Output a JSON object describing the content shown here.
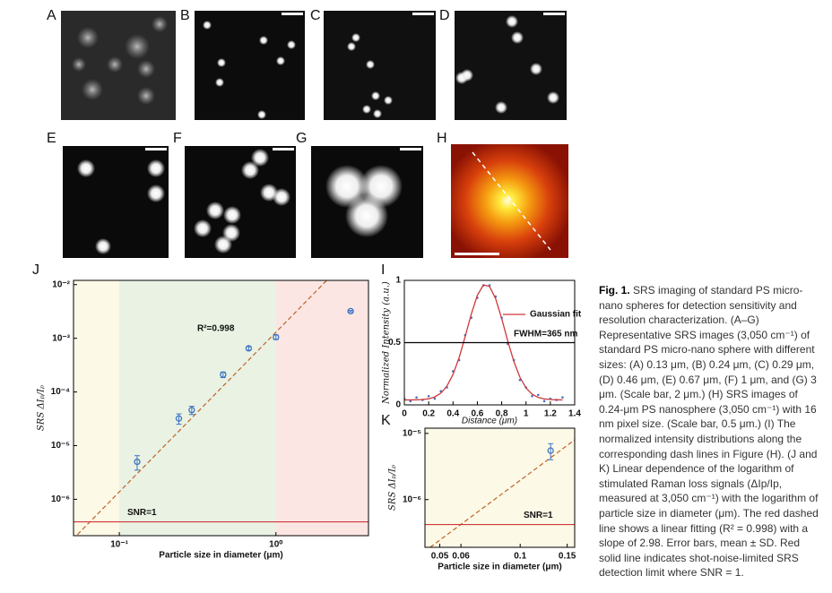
{
  "panel_labels": [
    "A",
    "B",
    "C",
    "D",
    "E",
    "F",
    "G",
    "H"
  ],
  "chart_data": [
    {
      "type": "scatter",
      "panel_label": "J",
      "xlabel": "Particle size in diameter (μm)",
      "ylabel": "SRS ΔIₚ/Iₚ",
      "xscale": "log",
      "yscale": "log",
      "xlim": [
        0.051,
        3.9
      ],
      "ylim": [
        2.1e-07,
        0.012
      ],
      "xticks": [
        {
          "value": 0.1,
          "label": "10⁻¹"
        },
        {
          "value": 1,
          "label": "10⁰"
        }
      ],
      "yticks": [
        {
          "value": 1e-06,
          "label": "10⁻⁶"
        },
        {
          "value": 1e-05,
          "label": "10⁻⁵"
        },
        {
          "value": 0.0001,
          "label": "10⁻⁴"
        },
        {
          "value": 0.001,
          "label": "10⁻³"
        },
        {
          "value": 0.01,
          "label": "10⁻²"
        }
      ],
      "regions": [
        {
          "from": 0.051,
          "to": 0.1,
          "color": "#fcf9e6"
        },
        {
          "from": 0.1,
          "to": 1,
          "color": "#e9f2e3"
        },
        {
          "from": 1,
          "to": 3.9,
          "color": "#fbe6e3"
        }
      ],
      "x": [
        0.13,
        0.24,
        0.29,
        0.46,
        0.67,
        1,
        3
      ],
      "values": [
        5e-06,
        3.2e-05,
        4.6e-05,
        0.00021,
        0.00065,
        0.00105,
        0.0032
      ],
      "errors": [
        1.5e-06,
        7e-06,
        8e-06,
        2.5e-05,
        5e-05,
        0.0001,
        0.0001
      ],
      "color": "#3e74c4",
      "fit": {
        "x": [
          0.054,
          2.1
        ],
        "values": [
          2.2e-07,
          0.0118
        ],
        "color": "#c0622a"
      },
      "threshold": {
        "value": 3.8e-07,
        "label": "SNR=1",
        "color": "#d0383a"
      },
      "annotation": "R²=0.998"
    },
    {
      "type": "line",
      "panel_label": "I",
      "xlabel": "Distance (μm)",
      "ylabel": "Normalized Intensity (a.u.)",
      "xscale": "linear",
      "yscale": "linear",
      "xlim": [
        0,
        1.4
      ],
      "ylim": [
        0,
        1
      ],
      "xticks": [
        0,
        0.2,
        0.4,
        0.6,
        0.8,
        1,
        1.2,
        1.4
      ],
      "yticks": [
        0,
        0.5,
        1
      ],
      "x": [
        0,
        0.05,
        0.1,
        0.15,
        0.2,
        0.25,
        0.3,
        0.35,
        0.4,
        0.45,
        0.5,
        0.55,
        0.6,
        0.65,
        0.7,
        0.75,
        0.8,
        0.85,
        0.9,
        0.95,
        1,
        1.05,
        1.1,
        1.15,
        1.2,
        1.25,
        1.3
      ],
      "points": {
        "color": "#4a6fc0",
        "values": [
          0.05,
          0.03,
          0.06,
          0.04,
          0.07,
          0.05,
          0.11,
          0.14,
          0.27,
          0.36,
          0.56,
          0.7,
          0.86,
          0.96,
          0.96,
          0.87,
          0.7,
          0.49,
          0.36,
          0.2,
          0.14,
          0.07,
          0.08,
          0.03,
          0.05,
          0.04,
          0.06
        ]
      },
      "series": [
        {
          "name": "Gaussian fit",
          "color": "#d0383a",
          "values": [
            0.04,
            0.04,
            0.041,
            0.043,
            0.049,
            0.064,
            0.094,
            0.151,
            0.244,
            0.379,
            0.549,
            0.729,
            0.88,
            0.963,
            0.952,
            0.854,
            0.694,
            0.513,
            0.349,
            0.222,
            0.136,
            0.086,
            0.06,
            0.048,
            0.043,
            0.041,
            0.04
          ]
        }
      ],
      "threshold": {
        "value": 0.5,
        "color": "#000000"
      },
      "annotation": "FWHM=365 nm"
    },
    {
      "type": "scatter",
      "panel_label": "K",
      "xlabel": "Particle size in diameter (μm)",
      "ylabel": "SRS ΔIₚ/Iₚ",
      "xscale": "log",
      "yscale": "log",
      "xlim": [
        0.044,
        0.16
      ],
      "ylim": [
        1.9e-07,
        1.2e-05
      ],
      "xticks": [
        0.05,
        0.06,
        0.1,
        0.15
      ],
      "yticks": [
        {
          "value": 1e-06,
          "label": "10⁻⁶"
        },
        {
          "value": 1e-05,
          "label": "10⁻⁵"
        }
      ],
      "regions": [
        {
          "from": 0.044,
          "to": 0.16,
          "color": "#fcf9e6"
        }
      ],
      "x": [
        0.13
      ],
      "values": [
        5.5e-06
      ],
      "errors": [
        1.5e-06
      ],
      "color": "#3e74c4",
      "fit": {
        "x": [
          0.046,
          0.16
        ],
        "values": [
          1.9e-07,
          8e-06
        ],
        "color": "#c0622a"
      },
      "threshold": {
        "value": 4.2e-07,
        "label": "SNR=1",
        "color": "#d0383a"
      }
    }
  ],
  "caption": {
    "label": "Fig. 1.",
    "text": "SRS imaging of standard PS micro-nano spheres for detection sensitivity and resolution characterization. (A–G) Representative SRS images (3,050 cm⁻¹) of standard PS micro-nano sphere with different sizes: (A) 0.13 μm, (B) 0.24 μm, (C) 0.29 μm, (D) 0.46 μm, (E) 0.67 μm, (F) 1 μm, and (G) 3 μm. (Scale bar, 2 μm.) (H) SRS images of 0.24-μm PS nanosphere (3,050 cm⁻¹) with 16 nm pixel size. (Scale bar, 0.5 μm.) (I) The normalized intensity distributions along the corresponding dash lines in Figure (H). (J and K) Linear dependence of the logarithm of stimulated Raman loss signals (ΔIp/Ip, measured at 3,050 cm⁻¹) with the logarithm of particle size in diameter (μm). The red dashed line shows a linear fitting (R² = 0.998) with a slope of 2.98. Error bars, mean ± SD. Red solid line indicates shot-noise-limited SRS detection limit where SNR = 1."
  }
}
